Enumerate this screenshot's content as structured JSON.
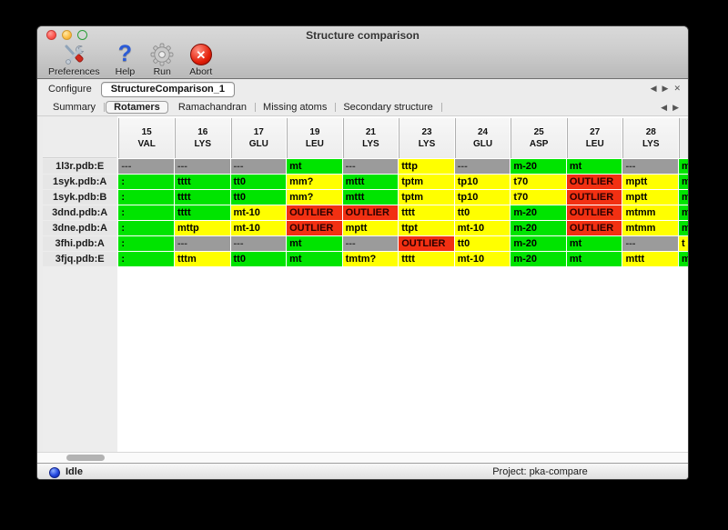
{
  "window": {
    "title": "Structure comparison"
  },
  "toolbar": {
    "items": [
      {
        "label": "Preferences",
        "icon": "tools-icon"
      },
      {
        "label": "Help",
        "icon": "help-icon",
        "glyph": "?"
      },
      {
        "label": "Run",
        "icon": "gear-icon"
      },
      {
        "label": "Abort",
        "icon": "abort-icon",
        "glyph": "✕"
      }
    ]
  },
  "configure": {
    "label": "Configure",
    "value": "StructureComparison_1",
    "icons": {
      "prev": "◀",
      "next": "▶",
      "close": "✕"
    }
  },
  "tabs": {
    "items": [
      "Summary",
      "Rotamers",
      "Ramachandran",
      "Missing atoms",
      "Secondary structure"
    ],
    "selected": "Rotamers",
    "icons": {
      "prev": "◀",
      "next": "▶"
    }
  },
  "colors": {
    "ok": "#00e400",
    "warn": "#ffff00",
    "outlier": "#f23012",
    "none": "#9b9b9b"
  },
  "table": {
    "columns": [
      {
        "num": "15",
        "res": "VAL"
      },
      {
        "num": "16",
        "res": "LYS"
      },
      {
        "num": "17",
        "res": "GLU"
      },
      {
        "num": "19",
        "res": "LEU"
      },
      {
        "num": "21",
        "res": "LYS"
      },
      {
        "num": "23",
        "res": "LYS"
      },
      {
        "num": "24",
        "res": "GLU"
      },
      {
        "num": "25",
        "res": "ASP"
      },
      {
        "num": "27",
        "res": "LEU"
      },
      {
        "num": "28",
        "res": "LYS"
      }
    ],
    "rows": [
      {
        "label": "1l3r.pdb:E",
        "cells": [
          {
            "text": "---",
            "status": "none"
          },
          {
            "text": "---",
            "status": "none"
          },
          {
            "text": "---",
            "status": "none"
          },
          {
            "text": "mt",
            "status": "ok"
          },
          {
            "text": "---",
            "status": "none"
          },
          {
            "text": "tttp",
            "status": "warn"
          },
          {
            "text": "---",
            "status": "none"
          },
          {
            "text": "m-20",
            "status": "ok"
          },
          {
            "text": "mt",
            "status": "ok"
          },
          {
            "text": "---",
            "status": "none"
          }
        ],
        "overflow": {
          "text": "m",
          "status": "ok"
        }
      },
      {
        "label": "1syk.pdb:A",
        "cells": [
          {
            "text": ":",
            "status": "ok"
          },
          {
            "text": "tttt",
            "status": "ok"
          },
          {
            "text": "tt0",
            "status": "ok"
          },
          {
            "text": "mm?",
            "status": "warn"
          },
          {
            "text": "mttt",
            "status": "ok"
          },
          {
            "text": "tptm",
            "status": "warn"
          },
          {
            "text": "tp10",
            "status": "warn"
          },
          {
            "text": "t70",
            "status": "warn"
          },
          {
            "text": "OUTLIER",
            "status": "outlier"
          },
          {
            "text": "mptt",
            "status": "warn"
          }
        ],
        "overflow": {
          "text": "m",
          "status": "ok"
        }
      },
      {
        "label": "1syk.pdb:B",
        "cells": [
          {
            "text": ":",
            "status": "ok"
          },
          {
            "text": "tttt",
            "status": "ok"
          },
          {
            "text": "tt0",
            "status": "ok"
          },
          {
            "text": "mm?",
            "status": "warn"
          },
          {
            "text": "mttt",
            "status": "ok"
          },
          {
            "text": "tptm",
            "status": "warn"
          },
          {
            "text": "tp10",
            "status": "warn"
          },
          {
            "text": "t70",
            "status": "warn"
          },
          {
            "text": "OUTLIER",
            "status": "outlier"
          },
          {
            "text": "mptt",
            "status": "warn"
          }
        ],
        "overflow": {
          "text": "m",
          "status": "ok"
        }
      },
      {
        "label": "3dnd.pdb:A",
        "cells": [
          {
            "text": ":",
            "status": "ok"
          },
          {
            "text": "tttt",
            "status": "ok"
          },
          {
            "text": "mt-10",
            "status": "warn"
          },
          {
            "text": "OUTLIER",
            "status": "outlier"
          },
          {
            "text": "OUTLIER",
            "status": "outlier"
          },
          {
            "text": "tttt",
            "status": "warn"
          },
          {
            "text": "tt0",
            "status": "warn"
          },
          {
            "text": "m-20",
            "status": "ok"
          },
          {
            "text": "OUTLIER",
            "status": "outlier"
          },
          {
            "text": "mtmm",
            "status": "warn"
          }
        ],
        "overflow": {
          "text": "m",
          "status": "ok"
        }
      },
      {
        "label": "3dne.pdb:A",
        "cells": [
          {
            "text": ":",
            "status": "ok"
          },
          {
            "text": "mttp",
            "status": "warn"
          },
          {
            "text": "mt-10",
            "status": "warn"
          },
          {
            "text": "OUTLIER",
            "status": "outlier"
          },
          {
            "text": "mptt",
            "status": "warn"
          },
          {
            "text": "ttpt",
            "status": "warn"
          },
          {
            "text": "mt-10",
            "status": "warn"
          },
          {
            "text": "m-20",
            "status": "ok"
          },
          {
            "text": "OUTLIER",
            "status": "outlier"
          },
          {
            "text": "mtmm",
            "status": "warn"
          }
        ],
        "overflow": {
          "text": "m",
          "status": "ok"
        }
      },
      {
        "label": "3fhi.pdb:A",
        "cells": [
          {
            "text": ":",
            "status": "ok"
          },
          {
            "text": "---",
            "status": "none"
          },
          {
            "text": "---",
            "status": "none"
          },
          {
            "text": "mt",
            "status": "ok"
          },
          {
            "text": "---",
            "status": "none"
          },
          {
            "text": "OUTLIER",
            "status": "outlier"
          },
          {
            "text": "tt0",
            "status": "warn"
          },
          {
            "text": "m-20",
            "status": "ok"
          },
          {
            "text": "mt",
            "status": "ok"
          },
          {
            "text": "---",
            "status": "none"
          }
        ],
        "overflow": {
          "text": "t",
          "status": "warn"
        }
      },
      {
        "label": "3fjq.pdb:E",
        "cells": [
          {
            "text": ":",
            "status": "ok"
          },
          {
            "text": "tttm",
            "status": "warn"
          },
          {
            "text": "tt0",
            "status": "ok"
          },
          {
            "text": "mt",
            "status": "ok"
          },
          {
            "text": "tmtm?",
            "status": "warn"
          },
          {
            "text": "tttt",
            "status": "warn"
          },
          {
            "text": "mt-10",
            "status": "warn"
          },
          {
            "text": "m-20",
            "status": "ok"
          },
          {
            "text": "mt",
            "status": "ok"
          },
          {
            "text": "mttt",
            "status": "warn"
          }
        ],
        "overflow": {
          "text": "m",
          "status": "ok"
        }
      }
    ]
  },
  "scrollbar": {
    "orientation": "horizontal"
  },
  "status": {
    "state": "Idle",
    "project": "Project: pka-compare"
  }
}
